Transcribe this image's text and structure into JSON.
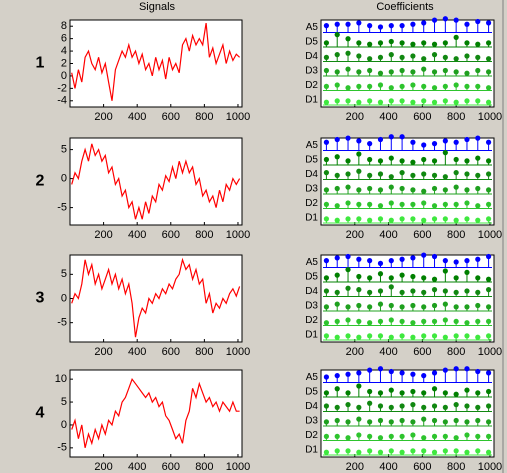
{
  "headers": {
    "signals": "Signals",
    "coefficients": "Coefficients"
  },
  "chart_data": [
    {
      "type": "line",
      "label": "1",
      "color": "#ff0000",
      "xlim": [
        0,
        1024
      ],
      "ylim": [
        -5,
        9
      ],
      "xticks": [
        200,
        400,
        600,
        800,
        1000
      ],
      "yticks": [
        -4,
        -2,
        0,
        2,
        4,
        6,
        8
      ],
      "x": [
        10,
        30,
        50,
        70,
        90,
        110,
        130,
        150,
        170,
        190,
        210,
        230,
        250,
        270,
        290,
        310,
        330,
        350,
        370,
        390,
        410,
        430,
        450,
        470,
        490,
        510,
        530,
        550,
        570,
        590,
        610,
        630,
        650,
        670,
        690,
        710,
        730,
        750,
        770,
        790,
        810,
        830,
        850,
        870,
        890,
        910,
        930,
        950,
        970,
        990,
        1010
      ],
      "values": [
        0.5,
        -2,
        1,
        -1,
        3,
        4,
        2,
        1,
        3,
        0.5,
        2,
        -1,
        -4,
        1,
        2.5,
        4,
        3,
        5,
        3,
        4,
        2,
        3.5,
        1,
        2,
        0,
        3,
        1,
        2.5,
        -0.5,
        3,
        1,
        2,
        0.5,
        5,
        6,
        4,
        6.5,
        5,
        6,
        5,
        8.5,
        3,
        4.5,
        2,
        3.5,
        5,
        2,
        4,
        2.5,
        3.5,
        3
      ]
    },
    {
      "type": "stem",
      "label": "1",
      "xlim": [
        0,
        1024
      ],
      "ylim": [
        0,
        1
      ],
      "xticks": [
        200,
        400,
        600,
        800,
        1000
      ],
      "x": [
        32,
        96,
        160,
        224,
        288,
        352,
        416,
        480,
        544,
        608,
        672,
        736,
        800,
        864,
        928,
        992
      ],
      "series": [
        {
          "name": "A5",
          "color": "#0000ff",
          "values": [
            0.5,
            0.6,
            0.6,
            0.7,
            0.5,
            0.4,
            0.5,
            0.5,
            0.6,
            0.7,
            0.9,
            1,
            0.9,
            0.6,
            0.8,
            0.7
          ]
        },
        {
          "name": "D5",
          "color": "#008000",
          "values": [
            0.3,
            0.9,
            0.6,
            0.3,
            0.2,
            0.3,
            0.4,
            0.3,
            0.2,
            0.3,
            0.2,
            0.3,
            0.7,
            0.3,
            0.2,
            0.3
          ]
        },
        {
          "name": "D4",
          "color": "#118811",
          "values": [
            0.3,
            0.5,
            0.6,
            0.4,
            0.2,
            0.3,
            0.5,
            0.3,
            0.4,
            0.2,
            0.5,
            0.3,
            0.2,
            0.4,
            0.3,
            0.2
          ]
        },
        {
          "name": "D3",
          "color": "#1fa01f",
          "values": [
            0.4,
            0.3,
            0.5,
            0.3,
            0.4,
            0.2,
            0.3,
            0.4,
            0.3,
            0.5,
            0.3,
            0.4,
            0.3,
            0.2,
            0.4,
            0.3
          ]
        },
        {
          "name": "D2",
          "color": "#2ec42e",
          "values": [
            0.3,
            0.4,
            0.2,
            0.3,
            0.3,
            0.4,
            0.2,
            0.3,
            0.4,
            0.3,
            0.2,
            0.3,
            0.4,
            0.3,
            0.3,
            0.2
          ]
        },
        {
          "name": "D1",
          "color": "#3fe83f",
          "values": [
            0.2,
            0.3,
            0.3,
            0.2,
            0.3,
            0.2,
            0.3,
            0.3,
            0.2,
            0.3,
            0.2,
            0.3,
            0.2,
            0.3,
            0.3,
            0.2
          ]
        }
      ]
    },
    {
      "type": "line",
      "label": "2",
      "color": "#ff0000",
      "xlim": [
        0,
        1024
      ],
      "ylim": [
        -8,
        7
      ],
      "xticks": [
        200,
        400,
        600,
        800,
        1000
      ],
      "yticks": [
        -5,
        0,
        5
      ],
      "x": [
        10,
        30,
        50,
        70,
        90,
        110,
        130,
        150,
        170,
        190,
        210,
        230,
        250,
        270,
        290,
        310,
        330,
        350,
        370,
        390,
        410,
        430,
        450,
        470,
        490,
        510,
        530,
        550,
        570,
        590,
        610,
        630,
        650,
        670,
        690,
        710,
        730,
        750,
        770,
        790,
        810,
        830,
        850,
        870,
        890,
        910,
        930,
        950,
        970,
        990,
        1010
      ],
      "values": [
        -1,
        1,
        0,
        3,
        5,
        3,
        6,
        4,
        5,
        3,
        4,
        1,
        2,
        -1,
        0,
        -3,
        -2,
        -5,
        -4,
        -7,
        -5,
        -7,
        -4,
        -6,
        -3,
        -4,
        -1,
        -2,
        0.5,
        -0.5,
        2,
        0,
        3,
        1,
        3,
        1,
        2,
        -1,
        0,
        -3,
        -2,
        -4,
        -3,
        -5,
        -2,
        -4,
        -1,
        -2,
        0,
        -1,
        0
      ]
    },
    {
      "type": "stem",
      "label": "2",
      "xlim": [
        0,
        1024
      ],
      "ylim": [
        0,
        1
      ],
      "xticks": [
        200,
        400,
        600,
        800,
        1000
      ],
      "x": [
        32,
        96,
        160,
        224,
        288,
        352,
        416,
        480,
        544,
        608,
        672,
        736,
        800,
        864,
        928,
        992
      ],
      "series": [
        {
          "name": "A5",
          "color": "#0000ff",
          "values": [
            0.6,
            0.8,
            0.9,
            0.7,
            0.5,
            0.8,
            1,
            1,
            0.6,
            0.4,
            0.5,
            0.7,
            0.6,
            0.8,
            0.9,
            0.6
          ]
        },
        {
          "name": "D5",
          "color": "#008000",
          "values": [
            0.4,
            0.6,
            0.3,
            0.8,
            0.4,
            0.3,
            0.5,
            0.3,
            0.2,
            0.4,
            0.3,
            0.9,
            0.4,
            0.3,
            0.5,
            0.3
          ]
        },
        {
          "name": "D4",
          "color": "#118811",
          "values": [
            0.5,
            0.3,
            0.4,
            0.6,
            0.3,
            0.4,
            0.2,
            0.5,
            0.3,
            0.4,
            0.3,
            0.2,
            0.5,
            0.4,
            0.3,
            0.4
          ]
        },
        {
          "name": "D3",
          "color": "#1fa01f",
          "values": [
            0.3,
            0.4,
            0.5,
            0.3,
            0.4,
            0.3,
            0.5,
            0.4,
            0.3,
            0.2,
            0.4,
            0.3,
            0.5,
            0.3,
            0.4,
            0.3
          ]
        },
        {
          "name": "D2",
          "color": "#2ec42e",
          "values": [
            0.3,
            0.2,
            0.4,
            0.3,
            0.3,
            0.2,
            0.4,
            0.3,
            0.3,
            0.4,
            0.2,
            0.3,
            0.3,
            0.4,
            0.2,
            0.3
          ]
        },
        {
          "name": "D1",
          "color": "#3fe83f",
          "values": [
            0.3,
            0.2,
            0.3,
            0.3,
            0.2,
            0.3,
            0.2,
            0.3,
            0.3,
            0.2,
            0.3,
            0.3,
            0.2,
            0.3,
            0.2,
            0.3
          ]
        }
      ]
    },
    {
      "type": "line",
      "label": "3",
      "color": "#ff0000",
      "xlim": [
        0,
        1024
      ],
      "ylim": [
        -9,
        9
      ],
      "xticks": [
        200,
        400,
        600,
        800,
        1000
      ],
      "yticks": [
        -5,
        0,
        5
      ],
      "x": [
        10,
        30,
        50,
        70,
        90,
        110,
        130,
        150,
        170,
        190,
        210,
        230,
        250,
        270,
        290,
        310,
        330,
        350,
        370,
        390,
        410,
        430,
        450,
        470,
        490,
        510,
        530,
        550,
        570,
        590,
        610,
        630,
        650,
        670,
        690,
        710,
        730,
        750,
        770,
        790,
        810,
        830,
        850,
        870,
        890,
        910,
        930,
        950,
        970,
        990,
        1010
      ],
      "values": [
        -1,
        1,
        0,
        3,
        8,
        5,
        7,
        3,
        5,
        2,
        4,
        6,
        3,
        5,
        2,
        4,
        1,
        3,
        -1,
        -8,
        -4,
        -2,
        -3,
        0,
        -1,
        1,
        0,
        2,
        1,
        3,
        2,
        4,
        5,
        8,
        6,
        7,
        4,
        6,
        3,
        4,
        -1,
        1,
        -3,
        -1,
        -2,
        0,
        -1,
        1,
        2,
        0.5,
        2.5
      ]
    },
    {
      "type": "stem",
      "label": "3",
      "xlim": [
        0,
        1024
      ],
      "ylim": [
        0,
        1
      ],
      "xticks": [
        200,
        400,
        600,
        800,
        1000
      ],
      "x": [
        32,
        96,
        160,
        224,
        288,
        352,
        416,
        480,
        544,
        608,
        672,
        736,
        800,
        864,
        928,
        992
      ],
      "series": [
        {
          "name": "A5",
          "color": "#0000ff",
          "values": [
            0.5,
            0.7,
            0.8,
            0.6,
            0.5,
            0.3,
            0.5,
            0.6,
            0.7,
            0.9,
            0.8,
            0.5,
            0.4,
            0.5,
            0.6,
            0.8
          ]
        },
        {
          "name": "D5",
          "color": "#008000",
          "values": [
            0.3,
            0.5,
            0.9,
            0.4,
            0.3,
            0.6,
            0.3,
            0.5,
            0.4,
            0.3,
            0.2,
            0.8,
            0.3,
            0.7,
            0.3,
            0.2
          ]
        },
        {
          "name": "D4",
          "color": "#118811",
          "values": [
            0.4,
            0.3,
            0.6,
            0.5,
            0.3,
            0.4,
            0.7,
            0.3,
            0.4,
            0.3,
            0.5,
            0.4,
            0.3,
            0.4,
            0.3,
            0.5
          ]
        },
        {
          "name": "D3",
          "color": "#1fa01f",
          "values": [
            0.3,
            0.5,
            0.3,
            0.4,
            0.3,
            0.5,
            0.4,
            0.3,
            0.4,
            0.3,
            0.4,
            0.5,
            0.3,
            0.3,
            0.4,
            0.3
          ]
        },
        {
          "name": "D2",
          "color": "#2ec42e",
          "values": [
            0.2,
            0.3,
            0.4,
            0.3,
            0.2,
            0.3,
            0.4,
            0.3,
            0.2,
            0.3,
            0.3,
            0.4,
            0.3,
            0.2,
            0.3,
            0.3
          ]
        },
        {
          "name": "D1",
          "color": "#3fe83f",
          "values": [
            0.3,
            0.2,
            0.3,
            0.2,
            0.3,
            0.3,
            0.2,
            0.3,
            0.2,
            0.3,
            0.3,
            0.2,
            0.3,
            0.3,
            0.2,
            0.3
          ]
        }
      ]
    },
    {
      "type": "line",
      "label": "4",
      "color": "#ff0000",
      "xlim": [
        0,
        1024
      ],
      "ylim": [
        -7,
        12
      ],
      "xticks": [
        200,
        400,
        600,
        800,
        1000
      ],
      "yticks": [
        -5,
        0,
        5,
        10
      ],
      "x": [
        10,
        30,
        50,
        70,
        90,
        110,
        130,
        150,
        170,
        190,
        210,
        230,
        250,
        270,
        290,
        310,
        330,
        350,
        370,
        390,
        410,
        430,
        450,
        470,
        490,
        510,
        530,
        550,
        570,
        590,
        610,
        630,
        650,
        670,
        690,
        710,
        730,
        750,
        770,
        790,
        810,
        830,
        850,
        870,
        890,
        910,
        930,
        950,
        970,
        990,
        1010
      ],
      "values": [
        -1,
        1,
        -3,
        0,
        -5,
        -2,
        -4,
        -1,
        -3,
        0,
        -2,
        1,
        0,
        3,
        2,
        5,
        6,
        8,
        10,
        9,
        8,
        7,
        6,
        7,
        5,
        6,
        4,
        5,
        2,
        1,
        -1,
        -3,
        -2,
        -4,
        1,
        3,
        8,
        6,
        9,
        7,
        5,
        6,
        4,
        5,
        3,
        5,
        4,
        3,
        5,
        3,
        3
      ]
    },
    {
      "type": "stem",
      "label": "4",
      "xlim": [
        0,
        1024
      ],
      "ylim": [
        0,
        1
      ],
      "xticks": [
        200,
        400,
        600,
        800,
        1000
      ],
      "x": [
        32,
        96,
        160,
        224,
        288,
        352,
        416,
        480,
        544,
        608,
        672,
        736,
        800,
        864,
        928,
        992
      ],
      "series": [
        {
          "name": "A5",
          "color": "#0000ff",
          "values": [
            0.4,
            0.5,
            0.6,
            0.7,
            0.9,
            1,
            0.8,
            0.7,
            0.6,
            0.5,
            0.7,
            0.9,
            1,
            1,
            0.8,
            0.7
          ]
        },
        {
          "name": "D5",
          "color": "#008000",
          "values": [
            0.3,
            0.6,
            0.3,
            0.8,
            0.4,
            0.3,
            0.5,
            0.3,
            0.4,
            0.3,
            0.6,
            0.3,
            0.2,
            0.5,
            0.3,
            0.4
          ]
        },
        {
          "name": "D4",
          "color": "#118811",
          "values": [
            0.4,
            0.3,
            0.5,
            0.3,
            0.6,
            0.4,
            0.3,
            0.4,
            0.5,
            0.3,
            0.4,
            0.3,
            0.5,
            0.4,
            0.3,
            0.4
          ]
        },
        {
          "name": "D3",
          "color": "#1fa01f",
          "values": [
            0.3,
            0.4,
            0.3,
            0.5,
            0.3,
            0.4,
            0.3,
            0.4,
            0.3,
            0.5,
            0.4,
            0.3,
            0.4,
            0.3,
            0.4,
            0.3
          ]
        },
        {
          "name": "D2",
          "color": "#2ec42e",
          "values": [
            0.3,
            0.3,
            0.2,
            0.4,
            0.3,
            0.2,
            0.3,
            0.3,
            0.4,
            0.2,
            0.3,
            0.3,
            0.2,
            0.4,
            0.3,
            0.3
          ]
        },
        {
          "name": "D1",
          "color": "#3fe83f",
          "values": [
            0.2,
            0.3,
            0.3,
            0.2,
            0.3,
            0.2,
            0.3,
            0.2,
            0.3,
            0.3,
            0.2,
            0.3,
            0.3,
            0.2,
            0.3,
            0.2
          ]
        }
      ]
    }
  ]
}
